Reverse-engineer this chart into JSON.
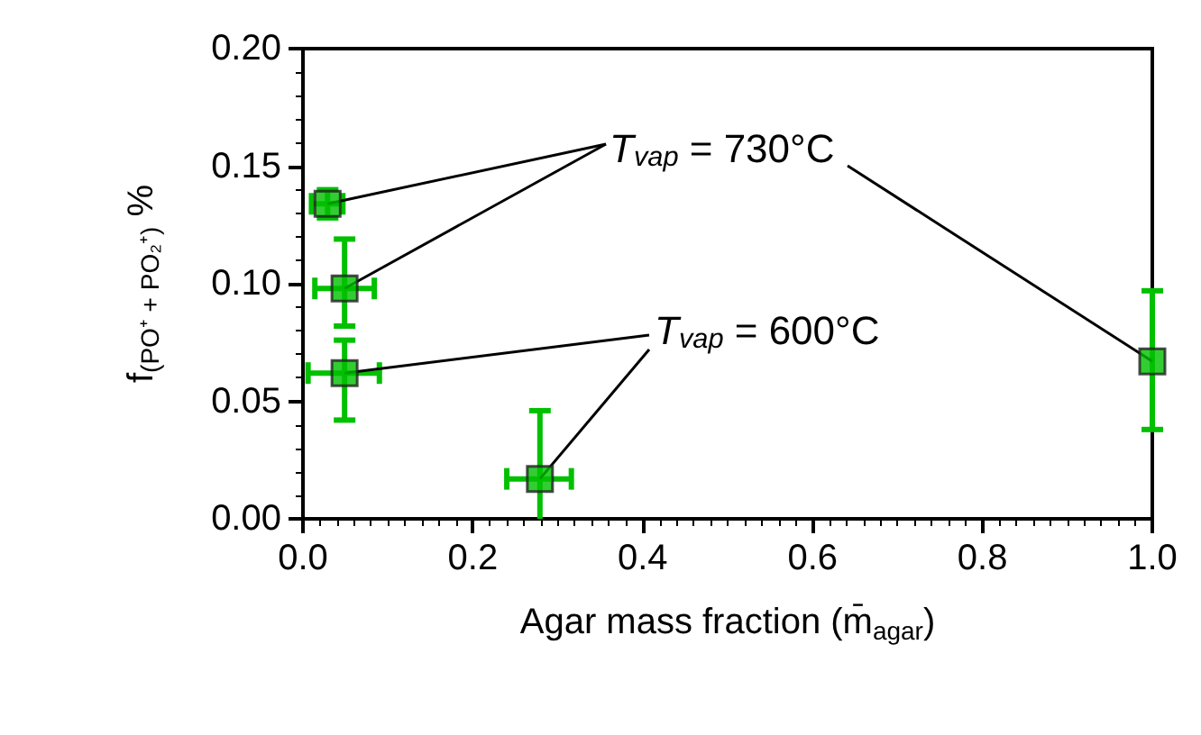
{
  "chart_data": {
    "type": "scatter",
    "xlabel": "Agar mass fraction (m̄$_{agar}$)",
    "ylabel": "f$_{(PO⁺ + PO₂⁺)}$ %",
    "series": [
      {
        "color": "#00c000",
        "x": [
          0.029,
          0.049,
          0.049,
          0.279,
          1.0
        ],
        "values": [
          0.134,
          0.098,
          0.062,
          0.017,
          0.067
        ],
        "errors": [
          [
            0.128,
            0.14
          ],
          [
            0.082,
            0.119
          ],
          [
            0.042,
            0.076
          ],
          [
            0,
            0.046
          ],
          [
            0.038,
            0.097
          ]
        ],
        "xerrors": [
          [
            0.01,
            0.047
          ],
          [
            0.014,
            0.084
          ],
          [
            0.006,
            0.09
          ],
          [
            0.24,
            0.316
          ],
          null
        ]
      }
    ],
    "annotations": [
      {
        "text": "T$_{vap}$ = 730°C",
        "x": 0.029,
        "y": 0.134
      },
      {
        "text": "T$_{vap}$ = 600°C",
        "x": 0.049,
        "y": 0.062
      }
    ],
    "xlim": [
      0,
      1
    ],
    "ylim": [
      0,
      0.2
    ],
    "xticks": [
      {
        "value": 0,
        "label": "0.0"
      },
      {
        "value": 0.2,
        "label": "0.2"
      },
      {
        "value": 0.4,
        "label": "0.4"
      },
      {
        "value": 0.6,
        "label": "0.6"
      },
      {
        "value": 0.8,
        "label": "0.8"
      },
      {
        "value": 1,
        "label": "1.0"
      }
    ],
    "yticks": [
      {
        "value": 0,
        "label": "0.00"
      },
      {
        "value": 0.05,
        "label": "0.05"
      },
      {
        "value": 0.1,
        "label": "0.10"
      },
      {
        "value": 0.15,
        "label": "0.15"
      },
      {
        "value": 0.2,
        "label": "0.20"
      }
    ],
    "marker": "square",
    "grid": false
  }
}
